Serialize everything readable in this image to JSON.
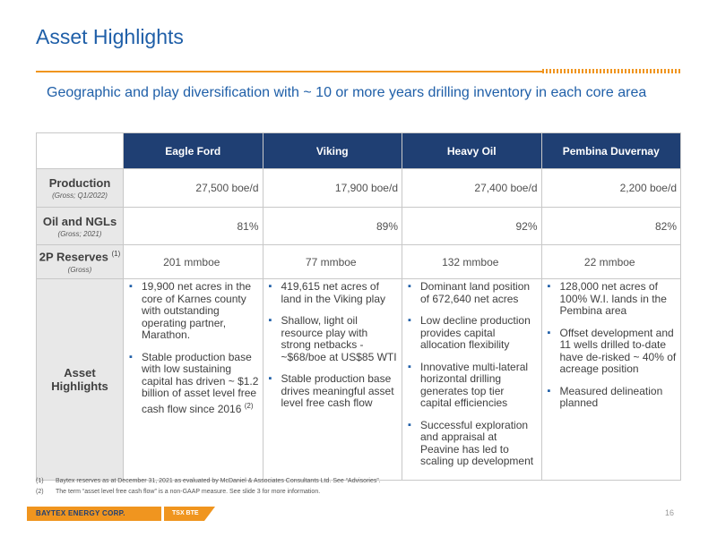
{
  "title": "Asset Highlights",
  "subtitle": "Geographic and play diversification with ~ 10 or more years drilling inventory in each core area",
  "columns": [
    "Eagle Ford",
    "Viking",
    "Heavy Oil",
    "Pembina Duvernay"
  ],
  "rows": {
    "production": {
      "label": "Production",
      "sub": "(Gross; Q1/2022)",
      "values": [
        "27,500 boe/d",
        "17,900 boe/d",
        "27,400 boe/d",
        "2,200 boe/d"
      ]
    },
    "oil_ngl": {
      "label": "Oil and NGLs",
      "sub": "(Gross; 2021)",
      "values": [
        "81%",
        "89%",
        "92%",
        "82%"
      ]
    },
    "reserves": {
      "label": "2P Reserves",
      "sup": "(1)",
      "sub": "(Gross)",
      "values": [
        "201 mmboe",
        "77 mmboe",
        "132 mmboe",
        "22 mmboe"
      ]
    },
    "highlights": {
      "label_line1": "Asset",
      "label_line2": "Highlights",
      "eagle_ford": [
        "19,900 net acres in the core of Karnes county with outstanding operating partner, Marathon.",
        "Stable production base with low sustaining capital has driven ~ $1.2 billion of asset level free cash flow since 2016"
      ],
      "eagle_ford_sup": "(2)",
      "viking": [
        "419,615 net acres of land in the Viking play",
        "Shallow, light oil resource play with strong netbacks - ~$68/boe at US$85 WTI",
        "Stable production base drives meaningful asset level free cash flow"
      ],
      "heavy_oil": [
        "Dominant land position of 672,640 net acres",
        "Low decline production provides capital allocation flexibility",
        "Innovative multi-lateral horizontal drilling generates top tier capital efficiencies",
        "Successful exploration and appraisal at Peavine has led to scaling up development"
      ],
      "pembina": [
        "128,000 net acres of 100% W.I. lands in the Pembina area",
        "Offset development and 11 wells drilled to-date have de-risked ~ 40% of acreage position",
        "Measured delineation planned"
      ]
    }
  },
  "footnotes": [
    {
      "num": "(1)",
      "text": "Baytex reserves as at December 31, 2021 as evaluated by McDaniel & Associates Consultants Ltd. See “Advisories”."
    },
    {
      "num": "(2)",
      "text": "The term “asset level free cash flow” is a non-GAAP measure. See slide 3 for more information."
    }
  ],
  "brand": {
    "name": "BAYTEX ENERGY CORP.",
    "ticker": "TSX BTE"
  },
  "page_number": "16",
  "colors": {
    "accent_blue": "#1f5fa8",
    "header_navy": "#1f3f73",
    "orange": "#f0951f",
    "label_gray": "#e8e8e8"
  }
}
